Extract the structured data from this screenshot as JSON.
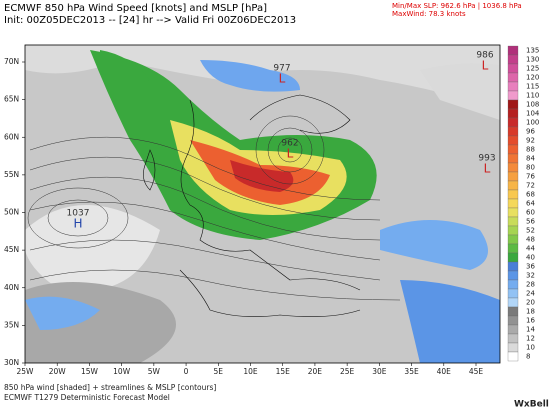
{
  "header": {
    "title": "ECMWF 850 hPa Wind Speed [knots] and MSLP [hPa]",
    "subtitle": "Init: 00Z05DEC2013 -- [24] hr --> Valid Fri 00Z06DEC2013",
    "stats": [
      "Min/Max SLP: 962.6 hPa | 1036.8 hPa",
      "MaxWind: 78.3 knots"
    ]
  },
  "map": {
    "lat_labels": [
      "70N",
      "65N",
      "60N",
      "55N",
      "50N",
      "45N",
      "40N",
      "35N",
      "30N"
    ],
    "lon_labels": [
      "25W",
      "20W",
      "15W",
      "10W",
      "5W",
      "0",
      "5E",
      "10E",
      "15E",
      "20E",
      "25E",
      "30E",
      "35E",
      "40E",
      "45E"
    ],
    "pressure_labels": [
      {
        "value": "986",
        "symbol": "L"
      },
      {
        "value": "977",
        "symbol": "L"
      },
      {
        "value": "962",
        "symbol": "L"
      },
      {
        "value": "993",
        "symbol": "L"
      },
      {
        "value": "1037",
        "symbol": "H"
      }
    ]
  },
  "colorbar": {
    "labels": [
      "135",
      "130",
      "125",
      "120",
      "115",
      "110",
      "108",
      "104",
      "100",
      "96",
      "92",
      "88",
      "84",
      "80",
      "76",
      "72",
      "68",
      "64",
      "60",
      "56",
      "52",
      "48",
      "44",
      "40",
      "36",
      "32",
      "28",
      "24",
      "20",
      "18",
      "16",
      "14",
      "12",
      "10",
      "8"
    ],
    "colors": [
      "#b0307a",
      "#c23f8a",
      "#d04f9a",
      "#dd66aa",
      "#e87fbd",
      "#f09acc",
      "#a01818",
      "#b52020",
      "#c82a2a",
      "#d83a2a",
      "#e44c2c",
      "#ec6030",
      "#f07434",
      "#f48a3a",
      "#f6a040",
      "#f7b548",
      "#f8c850",
      "#f5d85a",
      "#e8e060",
      "#c8dc5a",
      "#a6d452",
      "#82c84a",
      "#5cba44",
      "#3aa83e",
      "#4a7fd8",
      "#5b95e6",
      "#74acef",
      "#92c2f4",
      "#b2d6f8",
      "#7a7a7a",
      "#929292",
      "#aaaaaa",
      "#c2c2c2",
      "#dadada",
      "#ffffff"
    ]
  },
  "footer": {
    "lines": [
      "850 hPa wind [shaded] + streamlines & MSLP [contours]",
      "ECMWF T1279 Deterministic Forecast Model"
    ],
    "brand": "WxBell"
  }
}
